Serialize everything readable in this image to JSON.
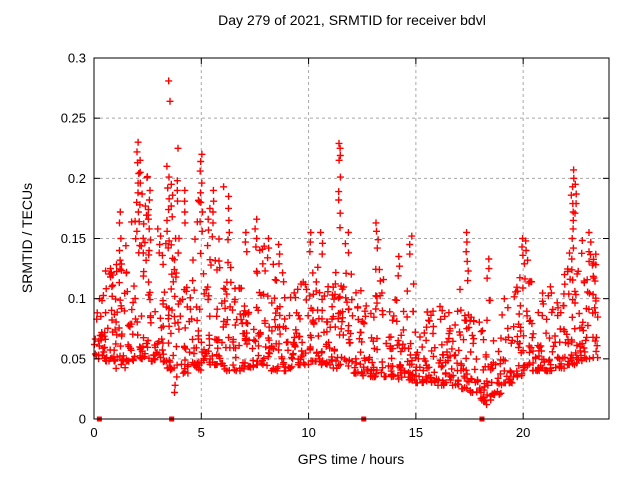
{
  "chart_data": {
    "type": "scatter",
    "title": "Day 279 of 2021, SRMTID for receiver bdvl",
    "xlabel": "GPS time / hours",
    "ylabel": "SRMTID / TECUs",
    "xlim": [
      0,
      24
    ],
    "ylim": [
      0,
      0.3
    ],
    "xticks": {
      "values": [
        0,
        5,
        10,
        15,
        20
      ],
      "labels": [
        "0",
        "5",
        "10",
        "15",
        "20"
      ]
    },
    "yticks": {
      "values": [
        0,
        0.05,
        0.1,
        0.15,
        0.2,
        0.25,
        0.3
      ],
      "labels": [
        "0",
        "0.05",
        "0.1",
        "0.15",
        "0.2",
        "0.25",
        "0.3"
      ]
    },
    "grid": true,
    "grid_color": "#a8a8a8",
    "marker": "plus",
    "marker_color": "#ff0000",
    "series_name": "SRMTID",
    "spike_columns": [
      {
        "x": 0.8,
        "y": [
          0.125,
          0.118,
          0.11,
          0.102
        ]
      },
      {
        "x": 1.2,
        "y": [
          0.172,
          0.163,
          0.15,
          0.14,
          0.132
        ]
      },
      {
        "x": 2.05,
        "y": [
          0.23,
          0.222,
          0.213,
          0.204,
          0.196,
          0.188,
          0.18,
          0.172,
          0.164,
          0.156
        ]
      },
      {
        "x": 2.2,
        "y": [
          0.215,
          0.205,
          0.196,
          0.187,
          0.178
        ]
      },
      {
        "x": 2.55,
        "y": [
          0.19,
          0.182,
          0.174,
          0.166,
          0.158
        ]
      },
      {
        "x": 3.05,
        "y": [
          0.152,
          0.145,
          0.138
        ]
      },
      {
        "x": 3.45,
        "y": [
          0.21,
          0.201,
          0.192,
          0.183,
          0.174,
          0.165,
          0.156,
          0.148
        ]
      },
      {
        "x": 3.5,
        "y": [
          0.281
        ]
      },
      {
        "x": 3.53,
        "y": [
          0.264
        ]
      },
      {
        "x": 3.65,
        "y": [
          0.195,
          0.186,
          0.177,
          0.168
        ]
      },
      {
        "x": 3.8,
        "y": [
          0.035,
          0.028,
          0.022
        ]
      },
      {
        "x": 3.88,
        "y": [
          0.225,
          0.198,
          0.19
        ]
      },
      {
        "x": 4.2,
        "y": [
          0.19,
          0.181,
          0.172,
          0.163
        ]
      },
      {
        "x": 5.0,
        "y": [
          0.22,
          0.214,
          0.206,
          0.196,
          0.188,
          0.18,
          0.172,
          0.164,
          0.156
        ]
      },
      {
        "x": 5.35,
        "y": [
          0.175,
          0.166,
          0.157
        ]
      },
      {
        "x": 5.6,
        "y": [
          0.19,
          0.181,
          0.172,
          0.163
        ]
      },
      {
        "x": 6.0,
        "y": [
          0.193
        ]
      },
      {
        "x": 6.3,
        "y": [
          0.185,
          0.175,
          0.165,
          0.155
        ]
      },
      {
        "x": 7.1,
        "y": [
          0.155,
          0.147,
          0.139
        ]
      },
      {
        "x": 7.55,
        "y": [
          0.166,
          0.158,
          0.15,
          0.143
        ]
      },
      {
        "x": 8.1,
        "y": [
          0.15,
          0.142,
          0.134
        ]
      },
      {
        "x": 8.6,
        "y": [
          0.145,
          0.137,
          0.129
        ]
      },
      {
        "x": 10.1,
        "y": [
          0.155,
          0.147,
          0.139
        ]
      },
      {
        "x": 10.6,
        "y": [
          0.155,
          0.146,
          0.137
        ]
      },
      {
        "x": 11.45,
        "y": [
          0.229,
          0.225,
          0.219,
          0.215,
          0.201,
          0.189,
          0.182,
          0.171,
          0.159
        ]
      },
      {
        "x": 13.2,
        "y": [
          0.163,
          0.156,
          0.149,
          0.142
        ]
      },
      {
        "x": 14.2,
        "y": [
          0.135,
          0.127,
          0.119
        ]
      },
      {
        "x": 14.75,
        "y": [
          0.152,
          0.145,
          0.137
        ]
      },
      {
        "x": 17.4,
        "y": [
          0.155,
          0.147,
          0.139,
          0.131,
          0.123,
          0.115
        ]
      },
      {
        "x": 18.3,
        "y": [
          0.028,
          0.02,
          0.012
        ]
      },
      {
        "x": 18.35,
        "y": [
          0.133,
          0.125,
          0.117
        ]
      },
      {
        "x": 20.0,
        "y": [
          0.15,
          0.143,
          0.136,
          0.129
        ]
      },
      {
        "x": 20.15,
        "y": [
          0.148,
          0.14,
          0.132
        ]
      },
      {
        "x": 21.95,
        "y": [
          0.12,
          0.112,
          0.104
        ]
      },
      {
        "x": 22.3,
        "y": [
          0.207,
          0.2,
          0.193,
          0.186,
          0.179,
          0.172,
          0.165,
          0.158,
          0.15,
          0.142,
          0.133,
          0.124
        ]
      },
      {
        "x": 22.45,
        "y": [
          0.195,
          0.187,
          0.179,
          0.171
        ]
      },
      {
        "x": 23.1,
        "y": [
          0.155,
          0.147,
          0.139,
          0.131
        ]
      }
    ],
    "band_format": "[x_start_hour, x_end_hour, y_min, y_max, point_count] - dense noisy band, bottom-weighted",
    "density_bands": [
      [
        0.0,
        0.5,
        0.05,
        0.105,
        26
      ],
      [
        0.5,
        1.0,
        0.048,
        0.125,
        28
      ],
      [
        1.0,
        1.5,
        0.042,
        0.155,
        30
      ],
      [
        1.5,
        2.0,
        0.048,
        0.185,
        28
      ],
      [
        2.0,
        2.5,
        0.05,
        0.21,
        32
      ],
      [
        2.5,
        3.0,
        0.048,
        0.17,
        28
      ],
      [
        3.0,
        3.5,
        0.042,
        0.15,
        28
      ],
      [
        3.5,
        4.0,
        0.04,
        0.185,
        32
      ],
      [
        4.0,
        4.5,
        0.038,
        0.115,
        24
      ],
      [
        4.5,
        5.0,
        0.04,
        0.185,
        30
      ],
      [
        5.0,
        5.5,
        0.045,
        0.15,
        26
      ],
      [
        5.5,
        6.0,
        0.045,
        0.165,
        26
      ],
      [
        6.0,
        6.5,
        0.04,
        0.16,
        26
      ],
      [
        6.5,
        7.0,
        0.04,
        0.115,
        24
      ],
      [
        7.0,
        7.5,
        0.042,
        0.125,
        26
      ],
      [
        7.5,
        8.0,
        0.045,
        0.15,
        28
      ],
      [
        8.0,
        8.5,
        0.04,
        0.13,
        26
      ],
      [
        8.5,
        9.0,
        0.04,
        0.125,
        26
      ],
      [
        9.0,
        9.5,
        0.042,
        0.11,
        24
      ],
      [
        9.5,
        10.0,
        0.045,
        0.115,
        24
      ],
      [
        10.0,
        10.5,
        0.048,
        0.14,
        28
      ],
      [
        10.5,
        11.0,
        0.045,
        0.12,
        26
      ],
      [
        11.0,
        11.5,
        0.042,
        0.125,
        28
      ],
      [
        11.5,
        12.0,
        0.04,
        0.16,
        28
      ],
      [
        12.0,
        12.5,
        0.038,
        0.11,
        24
      ],
      [
        12.5,
        13.0,
        0.035,
        0.095,
        24
      ],
      [
        13.0,
        13.5,
        0.035,
        0.13,
        26
      ],
      [
        13.5,
        14.0,
        0.035,
        0.1,
        24
      ],
      [
        14.0,
        14.5,
        0.033,
        0.11,
        26
      ],
      [
        14.5,
        15.0,
        0.032,
        0.12,
        24
      ],
      [
        15.0,
        15.5,
        0.03,
        0.08,
        24
      ],
      [
        15.5,
        16.0,
        0.03,
        0.09,
        24
      ],
      [
        16.0,
        16.5,
        0.028,
        0.1,
        26
      ],
      [
        16.5,
        17.0,
        0.028,
        0.09,
        26
      ],
      [
        17.0,
        17.5,
        0.025,
        0.12,
        26
      ],
      [
        17.5,
        18.0,
        0.022,
        0.085,
        24
      ],
      [
        18.0,
        18.5,
        0.015,
        0.1,
        26
      ],
      [
        18.5,
        19.0,
        0.02,
        0.09,
        24
      ],
      [
        19.0,
        19.5,
        0.03,
        0.1,
        24
      ],
      [
        19.5,
        20.0,
        0.035,
        0.13,
        26
      ],
      [
        20.0,
        20.5,
        0.04,
        0.13,
        28
      ],
      [
        20.5,
        21.0,
        0.04,
        0.105,
        24
      ],
      [
        21.0,
        21.5,
        0.04,
        0.11,
        22
      ],
      [
        21.5,
        22.0,
        0.042,
        0.1,
        22
      ],
      [
        22.0,
        22.5,
        0.045,
        0.16,
        30
      ],
      [
        22.5,
        23.0,
        0.048,
        0.15,
        30
      ],
      [
        23.0,
        23.6,
        0.05,
        0.14,
        28
      ]
    ],
    "zero_markers": {
      "marker": "filled-square",
      "y": 0,
      "x": [
        0.25,
        3.62,
        12.57,
        18.08
      ]
    }
  }
}
